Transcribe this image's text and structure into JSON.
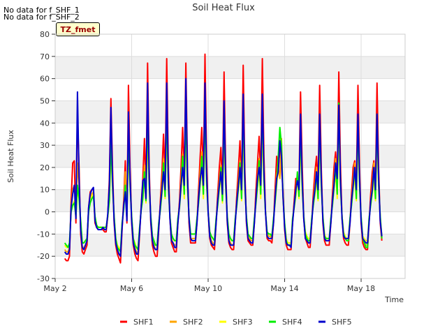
{
  "notes": [
    "No data for f_SHF_1",
    "No data for f_SHF_2"
  ],
  "badge": "TZ_fmet",
  "chart_data": {
    "type": "line",
    "title": "Soil Heat Flux",
    "xlabel": "Time",
    "ylabel": "Soil Heat Flux",
    "xlim": [
      2.0,
      20.3
    ],
    "ylim": [
      -30,
      80
    ],
    "yticks": [
      -30,
      -20,
      -10,
      0,
      10,
      20,
      30,
      40,
      50,
      60,
      70,
      80
    ],
    "xticks": [
      {
        "day": 2,
        "label": "May 2"
      },
      {
        "day": 6,
        "label": "May 6"
      },
      {
        "day": 10,
        "label": "May 10"
      },
      {
        "day": 14,
        "label": "May 14"
      },
      {
        "day": 18,
        "label": "May 18"
      }
    ],
    "grid": true,
    "legend_position": "bottom",
    "day_start": 2.5,
    "samples_per_day": 12,
    "series": [
      {
        "name": "SHF1",
        "color": "#ff0000",
        "values": [
          -21,
          -22,
          -22,
          -20,
          5,
          22,
          23,
          -5,
          45,
          20,
          -10,
          -18,
          -19,
          -17,
          -15,
          2,
          9,
          10,
          10,
          -5,
          -7,
          -8,
          -8,
          -8,
          -8,
          -9,
          -9,
          -2,
          15,
          51,
          20,
          -5,
          -15,
          -19,
          -21,
          -23,
          -8,
          5,
          23,
          -5,
          57,
          20,
          -5,
          -15,
          -19,
          -21,
          -22,
          -10,
          3,
          15,
          33,
          10,
          67,
          20,
          -5,
          -15,
          -18,
          -20,
          -20,
          -8,
          5,
          18,
          35,
          15,
          69,
          22,
          -3,
          -14,
          -16,
          -18,
          -18,
          -5,
          5,
          20,
          38,
          15,
          67,
          20,
          -5,
          -14,
          -14,
          -14,
          -14,
          -5,
          10,
          25,
          38,
          15,
          71,
          25,
          0,
          -12,
          -15,
          -16,
          -17,
          -5,
          8,
          20,
          29,
          10,
          63,
          20,
          -5,
          -14,
          -16,
          -17,
          -17,
          -5,
          8,
          20,
          32,
          12,
          66,
          20,
          -5,
          -13,
          -14,
          -15,
          -15,
          -5,
          10,
          22,
          34,
          15,
          69,
          25,
          0,
          -12,
          -13,
          -13,
          -14,
          -5,
          10,
          25,
          18,
          29,
          20,
          10,
          -8,
          -15,
          -17,
          -17,
          -17,
          -5,
          5,
          15,
          15,
          12,
          54,
          22,
          -3,
          -12,
          -14,
          -16,
          -16,
          -5,
          8,
          18,
          25,
          12,
          57,
          20,
          -5,
          -13,
          -15,
          -15,
          -15,
          -5,
          8,
          20,
          27,
          15,
          63,
          22,
          -3,
          -12,
          -14,
          -15,
          -15,
          -5,
          8,
          20,
          23,
          12,
          57,
          20,
          -5,
          -14,
          -16,
          -17,
          -17,
          -5,
          8,
          18,
          23,
          12,
          58,
          20,
          -5,
          -13
        ]
      },
      {
        "name": "SHF2",
        "color": "#ffa500",
        "values": [
          -17,
          -18,
          -18,
          -16,
          2,
          10,
          12,
          -3,
          22,
          12,
          -6,
          -16,
          -16,
          -15,
          -13,
          1,
          6,
          8,
          9,
          -3,
          -6,
          -7,
          -7,
          -7,
          -7,
          -8,
          -8,
          -2,
          10,
          32,
          12,
          -3,
          -13,
          -17,
          -19,
          -20,
          -6,
          2,
          18,
          -3,
          38,
          14,
          -3,
          -13,
          -16,
          -18,
          -19,
          -8,
          2,
          10,
          21,
          6,
          46,
          14,
          -3,
          -12,
          -15,
          -17,
          -17,
          -6,
          3,
          12,
          24,
          10,
          48,
          15,
          -2,
          -12,
          -14,
          -15,
          -15,
          -4,
          3,
          14,
          26,
          10,
          47,
          14,
          -3,
          -12,
          -12,
          -12,
          -12,
          -4,
          6,
          18,
          27,
          10,
          49,
          17,
          0,
          -10,
          -13,
          -14,
          -15,
          -4,
          5,
          14,
          21,
          6,
          44,
          14,
          -3,
          -12,
          -14,
          -15,
          -15,
          -4,
          5,
          14,
          23,
          8,
          46,
          14,
          -3,
          -11,
          -12,
          -13,
          -13,
          -4,
          6,
          15,
          24,
          10,
          48,
          17,
          0,
          -10,
          -11,
          -11,
          -12,
          -4,
          6,
          17,
          20,
          15,
          33,
          7,
          -6,
          -13,
          -15,
          -15,
          -15,
          -4,
          3,
          10,
          15,
          8,
          38,
          15,
          -2,
          -10,
          -12,
          -14,
          -14,
          -4,
          5,
          12,
          20,
          8,
          40,
          14,
          -3,
          -11,
          -13,
          -13,
          -13,
          -4,
          5,
          14,
          24,
          10,
          44,
          15,
          -2,
          -10,
          -12,
          -13,
          -13,
          -4,
          5,
          14,
          22,
          8,
          40,
          14,
          -3,
          -12,
          -14,
          -15,
          -15,
          -4,
          5,
          12,
          22,
          8,
          40,
          14,
          -3,
          -12
        ]
      },
      {
        "name": "SHF3",
        "color": "#ffff00",
        "values": [
          -15,
          -16,
          -16,
          -14,
          0,
          3,
          5,
          -2,
          10,
          6,
          -4,
          -14,
          -14,
          -13,
          -12,
          0,
          5,
          7,
          8,
          -2,
          -6,
          -7,
          -7,
          -7,
          -7,
          -7,
          -7,
          -2,
          5,
          28,
          10,
          -2,
          -12,
          -15,
          -16,
          -18,
          -5,
          1,
          12,
          -2,
          28,
          10,
          -2,
          -12,
          -14,
          -16,
          -17,
          -7,
          1,
          6,
          15,
          4,
          36,
          10,
          -2,
          -11,
          -13,
          -15,
          -15,
          -5,
          1,
          8,
          18,
          6,
          38,
          10,
          -2,
          -10,
          -12,
          -13,
          -13,
          -3,
          2,
          10,
          20,
          6,
          37,
          10,
          -2,
          -10,
          -10,
          -10,
          -10,
          -3,
          4,
          12,
          20,
          6,
          39,
          12,
          0,
          -9,
          -11,
          -12,
          -13,
          -3,
          3,
          10,
          16,
          4,
          34,
          10,
          -2,
          -10,
          -12,
          -13,
          -13,
          -3,
          3,
          10,
          17,
          5,
          36,
          10,
          -2,
          -10,
          -11,
          -12,
          -12,
          -3,
          4,
          11,
          18,
          6,
          38,
          12,
          0,
          -9,
          -10,
          -10,
          -11,
          -3,
          4,
          12,
          20,
          37,
          26,
          6,
          -5,
          -12,
          -14,
          -14,
          -14,
          -3,
          2,
          7,
          15,
          6,
          31,
          10,
          -2,
          -9,
          -11,
          -12,
          -12,
          -3,
          3,
          8,
          15,
          5,
          33,
          10,
          -2,
          -10,
          -12,
          -12,
          -12,
          -3,
          3,
          10,
          18,
          6,
          36,
          10,
          -2,
          -9,
          -11,
          -12,
          -12,
          -3,
          3,
          10,
          16,
          5,
          33,
          10,
          -2,
          -11,
          -12,
          -13,
          -13,
          -3,
          3,
          8,
          16,
          5,
          33,
          10,
          -2,
          -11
        ]
      },
      {
        "name": "SHF4",
        "color": "#00ee00",
        "values": [
          -14,
          -15,
          -16,
          -14,
          0,
          3,
          4,
          -2,
          12,
          6,
          -4,
          -14,
          -14,
          -13,
          -12,
          0,
          4,
          6,
          7,
          -2,
          -6,
          -7,
          -7,
          -7,
          -7,
          -7,
          -7,
          -2,
          5,
          32,
          12,
          -2,
          -12,
          -16,
          -17,
          -18,
          -5,
          1,
          12,
          -2,
          35,
          12,
          -2,
          -12,
          -15,
          -16,
          -17,
          -7,
          1,
          6,
          18,
          5,
          46,
          12,
          -2,
          -11,
          -13,
          -15,
          -15,
          -5,
          1,
          9,
          22,
          7,
          48,
          12,
          -2,
          -10,
          -12,
          -13,
          -13,
          -3,
          2,
          11,
          25,
          8,
          47,
          12,
          -2,
          -10,
          -10,
          -10,
          -10,
          -3,
          4,
          13,
          25,
          8,
          49,
          14,
          0,
          -9,
          -11,
          -12,
          -13,
          -3,
          3,
          11,
          20,
          5,
          44,
          12,
          -2,
          -10,
          -12,
          -13,
          -13,
          -3,
          3,
          11,
          22,
          6,
          46,
          12,
          -2,
          -10,
          -11,
          -12,
          -12,
          -3,
          4,
          12,
          23,
          8,
          50,
          14,
          0,
          -9,
          -10,
          -10,
          -11,
          -3,
          4,
          13,
          25,
          38,
          30,
          7,
          -5,
          -13,
          -15,
          -15,
          -15,
          -3,
          2,
          8,
          18,
          7,
          38,
          12,
          -2,
          -10,
          -12,
          -13,
          -13,
          -3,
          3,
          9,
          18,
          6,
          42,
          12,
          -2,
          -11,
          -12,
          -12,
          -12,
          -3,
          3,
          11,
          22,
          8,
          49,
          12,
          -2,
          -10,
          -12,
          -13,
          -13,
          -3,
          3,
          11,
          20,
          6,
          42,
          12,
          -2,
          -12,
          -14,
          -16,
          -16,
          -3,
          3,
          9,
          20,
          6,
          44,
          12,
          -2,
          -12
        ]
      },
      {
        "name": "SHF5",
        "color": "#0000cc",
        "values": [
          -18,
          -19,
          -19,
          -17,
          2,
          8,
          12,
          -3,
          54,
          15,
          -8,
          -16,
          -17,
          -15,
          -13,
          2,
          8,
          10,
          11,
          -4,
          -7,
          -8,
          -8,
          -8,
          -7,
          -8,
          -8,
          -1,
          12,
          47,
          15,
          -4,
          -14,
          -17,
          -19,
          -20,
          -7,
          3,
          9,
          -4,
          45,
          15,
          -4,
          -14,
          -17,
          -19,
          -19,
          -9,
          2,
          14,
          15,
          6,
          58,
          15,
          -4,
          -13,
          -16,
          -17,
          -17,
          -7,
          3,
          10,
          18,
          10,
          58,
          15,
          -3,
          -13,
          -14,
          -16,
          -16,
          -5,
          3,
          12,
          20,
          12,
          60,
          16,
          -3,
          -12,
          -13,
          -13,
          -13,
          -5,
          6,
          15,
          20,
          12,
          58,
          18,
          0,
          -11,
          -14,
          -15,
          -15,
          -5,
          5,
          12,
          18,
          8,
          50,
          15,
          -4,
          -13,
          -15,
          -15,
          -15,
          -5,
          5,
          12,
          20,
          10,
          53,
          15,
          -4,
          -12,
          -13,
          -14,
          -14,
          -5,
          6,
          15,
          20,
          12,
          53,
          18,
          0,
          -11,
          -12,
          -12,
          -12,
          -5,
          6,
          15,
          18,
          32,
          25,
          7,
          -7,
          -14,
          -15,
          -15,
          -16,
          -5,
          3,
          10,
          14,
          10,
          44,
          15,
          -3,
          -12,
          -13,
          -14,
          -14,
          -5,
          5,
          10,
          18,
          10,
          44,
          15,
          -4,
          -12,
          -13,
          -13,
          -13,
          -5,
          5,
          12,
          22,
          15,
          48,
          15,
          -3,
          -11,
          -12,
          -12,
          -12,
          -5,
          5,
          12,
          20,
          10,
          44,
          15,
          -4,
          -12,
          -13,
          -14,
          -14,
          -5,
          5,
          10,
          20,
          10,
          44,
          15,
          -4,
          -11
        ]
      }
    ]
  }
}
